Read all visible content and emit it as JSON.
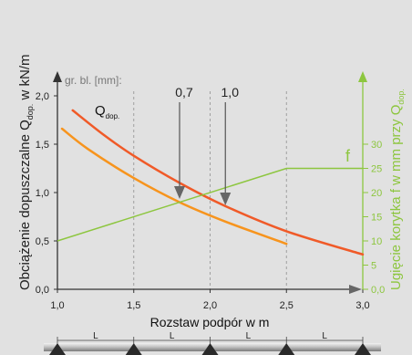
{
  "chart_data": {
    "type": "line",
    "y_title_main": "Obciążenie dopuszczalne Q",
    "y_title_sub": "dop.",
    "y_title_unit": "w kN/m",
    "y2_title_main": "Ugięcie korytka f w mm przy Q",
    "y2_title_sub": "dop.",
    "xlabel": "Rozstaw podpór w m",
    "gr_bl_label": "gr. bl. [mm]:",
    "x_ticks": [
      "1,0",
      "1,5",
      "2,0",
      "2,5",
      "3,0"
    ],
    "y_ticks": [
      "0,0",
      "0,5",
      "1,0",
      "1,5",
      "2,0"
    ],
    "y2_ticks": [
      "0,0",
      "5",
      "10",
      "15",
      "20",
      "25",
      "30"
    ],
    "xlim": [
      1.0,
      3.0
    ],
    "ylim": [
      0.0,
      2.0
    ],
    "y2lim": [
      0,
      40
    ],
    "grid_x": [
      1.5,
      2.0,
      2.5,
      3.0
    ],
    "series": [
      {
        "name": "1,0",
        "color": "#f05a28",
        "axis": "left",
        "x": [
          1.1,
          1.3,
          1.5,
          1.8,
          2.1,
          2.5,
          3.0
        ],
        "y": [
          1.85,
          1.6,
          1.38,
          1.1,
          0.86,
          0.6,
          0.36
        ]
      },
      {
        "name": "0,7",
        "color": "#f7941d",
        "axis": "left",
        "x": [
          1.03,
          1.2,
          1.5,
          1.8,
          2.1,
          2.5
        ],
        "y": [
          1.66,
          1.45,
          1.15,
          0.9,
          0.7,
          0.47
        ]
      },
      {
        "name": "f",
        "color": "#8dc63f",
        "axis": "right",
        "x": [
          1.0,
          2.5,
          3.0
        ],
        "y": [
          10,
          25,
          25
        ]
      }
    ],
    "labels": {
      "q": "Q",
      "q_sub": "dop.",
      "f": "f",
      "t07": "0,7",
      "t10": "1,0"
    },
    "markers": [
      {
        "label": "0,7",
        "x": 1.8
      },
      {
        "label": "1,0",
        "x": 2.1
      }
    ],
    "span_labels": [
      "L",
      "L",
      "L",
      "L"
    ],
    "grid": true
  }
}
